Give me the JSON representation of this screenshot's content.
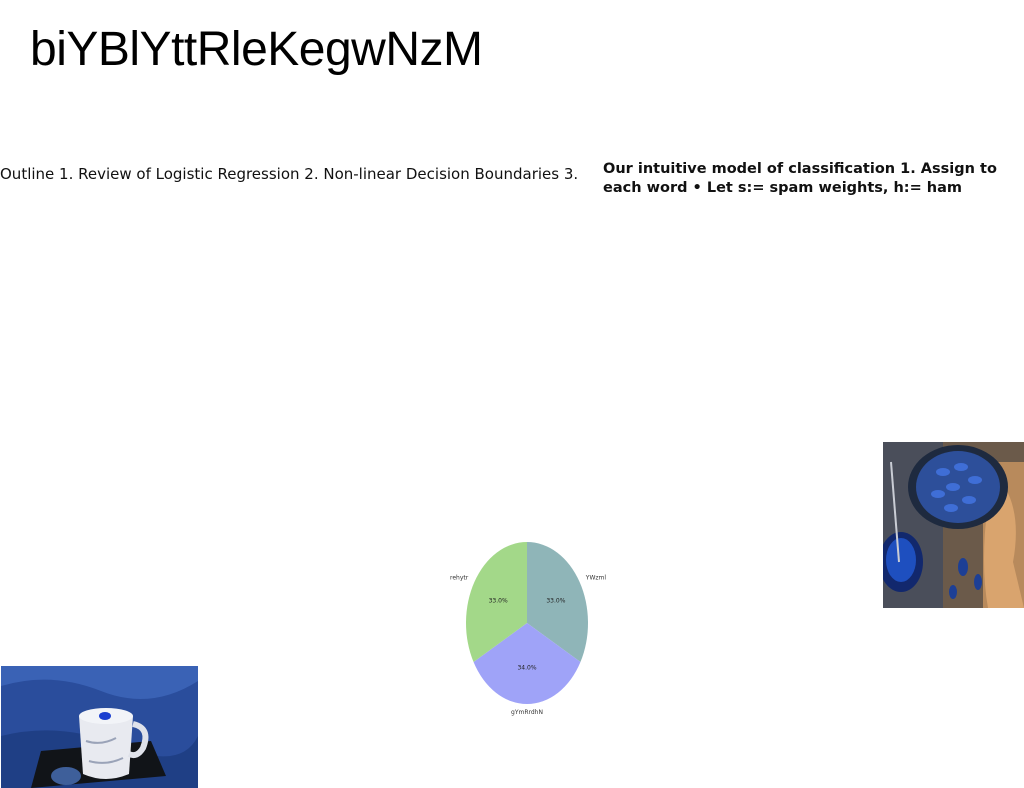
{
  "slide": {
    "title": "biYBlYttRleKegwNzM",
    "left_text": "Outline 1. Review of Logistic Regression 2. Non-linear Decision Boundaries 3.",
    "right_text": "Our intuitive model of classification 1. Assign to each word • Let s:= spam weights, h:= ham"
  },
  "images": {
    "top_right": "blue-pea-dessert-photo",
    "bottom_left": "blue-latte-cup-photo"
  },
  "chart_data": {
    "type": "pie",
    "categories": [
      "YWzml",
      "gYmRrdhN",
      "rehytr"
    ],
    "values": [
      33.0,
      34.0,
      33.0
    ],
    "value_labels": [
      "33.0%",
      "34.0%",
      "33.0%"
    ],
    "colors": [
      "#8fb5b8",
      "#9fa3f8",
      "#a3d889"
    ],
    "start": "top",
    "direction": "clockwise"
  }
}
